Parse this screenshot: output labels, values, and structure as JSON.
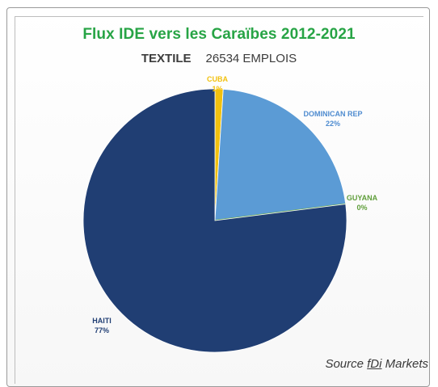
{
  "chart_data": {
    "type": "pie",
    "title": "Flux IDE vers les Caraïbes 2012-2021",
    "subtitle_left": "TEXTILE",
    "subtitle_right": "26534 EMPLOIS",
    "slices": [
      {
        "name": "CUBA",
        "value": 1,
        "display": "1%",
        "color": "#f2c10e",
        "label_color": "#f2c10e"
      },
      {
        "name": "DOMINICAN REP",
        "value": 22,
        "display": "22%",
        "color": "#5b9bd5",
        "label_color": "#4f8cd0"
      },
      {
        "name": "GUYANA",
        "value": 0,
        "display": "0%",
        "color": "#70ad47",
        "label_color": "#5f9e3a"
      },
      {
        "name": "HAITI",
        "value": 77,
        "display": "77%",
        "color": "#203e73",
        "label_color": "#203e73"
      }
    ],
    "legend": "none"
  },
  "source": {
    "prefix": "Source ",
    "brand": "fDi",
    "suffix": " Markets"
  }
}
